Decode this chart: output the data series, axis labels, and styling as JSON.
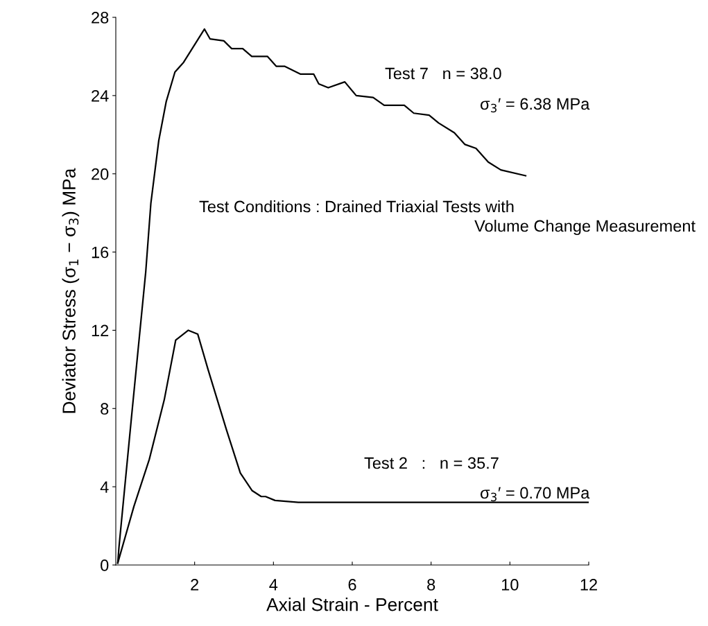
{
  "chart_data": {
    "type": "line",
    "xlabel": "Axial Strain - Percent",
    "ylabel": "Deviator Stress (σ$_{1}$ − σ$_{3}$) MPa",
    "xlim": [
      0,
      12
    ],
    "xticks": [
      2,
      4,
      6,
      8,
      10,
      12
    ],
    "ylim": [
      0,
      28
    ],
    "yticks": [
      0,
      4,
      8,
      12,
      16,
      20,
      24,
      28
    ],
    "grid": false,
    "legend": false,
    "marker": "none",
    "line_style": "solid",
    "series": [
      {
        "color": "#000000",
        "x": [
          0.05,
          0.08,
          0.4,
          0.76,
          0.89,
          1.09,
          1.28,
          1.5,
          1.72,
          2.25,
          2.39,
          2.74,
          2.94,
          3.22,
          3.45,
          3.85,
          4.07,
          4.28,
          4.68,
          5.02,
          5.15,
          5.39,
          5.81,
          6.1,
          6.53,
          6.81,
          7.32,
          7.56,
          7.95,
          8.19,
          8.59,
          8.86,
          9.14,
          9.45,
          9.77,
          10.4
        ],
        "values": [
          0.1,
          0.9,
          7.6,
          15.0,
          18.5,
          21.7,
          23.7,
          25.2,
          25.7,
          27.4,
          26.9,
          26.8,
          26.4,
          26.4,
          26.0,
          26.0,
          25.5,
          25.5,
          25.1,
          25.1,
          24.6,
          24.4,
          24.7,
          24.0,
          23.9,
          23.5,
          23.5,
          23.1,
          23.0,
          22.6,
          22.1,
          21.5,
          21.3,
          20.6,
          20.2,
          19.9
        ]
      },
      {
        "color": "#000000",
        "x": [
          0.05,
          0.46,
          0.85,
          1.23,
          1.52,
          1.84,
          2.08,
          2.34,
          2.81,
          3.16,
          3.46,
          3.69,
          3.8,
          4.04,
          4.63,
          12.0
        ],
        "values": [
          0.1,
          3.0,
          5.4,
          8.45,
          11.5,
          12.0,
          11.8,
          10.0,
          6.9,
          4.7,
          3.8,
          3.5,
          3.5,
          3.3,
          3.2,
          3.2
        ]
      }
    ],
    "annotations": [
      "Test 7   n = 38.0",
      "σ$_{3}$′ = 6.38 MPa",
      "Test Conditions : Drained Triaxial Tests with",
      "Volume Change Measurement",
      "Test 2   :   n = 35.7",
      "σ$_{3}$′ = 0.70 MPa"
    ]
  }
}
